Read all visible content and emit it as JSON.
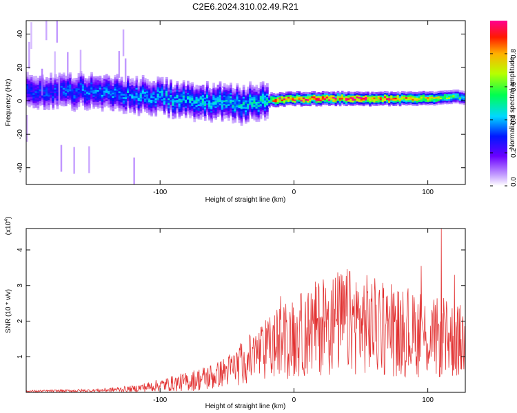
{
  "figure_title": "C2E6.2024.310.02.49.R21",
  "colors": {
    "snr_line": "#e23232",
    "background": "#ffffff",
    "axis": "#000000"
  },
  "chart_data": [
    {
      "type": "heatmap",
      "name": "spectrogram",
      "xlabel": "Height of straight line (km)",
      "ylabel": "Frequency (Hz)",
      "xlim": [
        -200,
        128
      ],
      "ylim": [
        -50,
        48
      ],
      "xticks": [
        -100,
        0,
        100
      ],
      "yticks": [
        -40,
        -20,
        0,
        20,
        40
      ],
      "colorbar": {
        "label": "Normalized spectral amplitude",
        "range": [
          0.0,
          1.0
        ],
        "ticks": [
          "0.0",
          "0.2",
          "0.4",
          "0.6",
          "0.8"
        ],
        "tick_values": [
          0.0,
          0.2,
          0.4,
          0.6,
          0.8
        ],
        "colormap": "rainbow"
      },
      "grid": false,
      "ridge_center_hz": [
        [
          -200,
          6
        ],
        [
          -180,
          4
        ],
        [
          -160,
          6
        ],
        [
          -140,
          5
        ],
        [
          -120,
          3
        ],
        [
          -100,
          2
        ],
        [
          -80,
          0
        ],
        [
          -60,
          -1
        ],
        [
          -40,
          -2
        ],
        [
          -20,
          0
        ],
        [
          0,
          1
        ],
        [
          20,
          1
        ],
        [
          40,
          1
        ],
        [
          60,
          1
        ],
        [
          80,
          1
        ],
        [
          100,
          1
        ],
        [
          128,
          2
        ]
      ],
      "peak_amplitude": [
        [
          -200,
          0.3
        ],
        [
          -100,
          0.4
        ],
        [
          -20,
          0.45
        ],
        [
          -15,
          0.9
        ],
        [
          0,
          0.95
        ],
        [
          60,
          0.92
        ],
        [
          100,
          0.75
        ],
        [
          128,
          0.5
        ]
      ]
    },
    {
      "type": "line",
      "name": "snr",
      "xlabel": "Height of straight line (km)",
      "ylabel": "SNR (10 * v/v)",
      "scale_label": "(x10",
      "scale_exponent": "4",
      "xlim": [
        -200,
        128
      ],
      "ylim": [
        0,
        4.6
      ],
      "xticks": [
        -100,
        0,
        100
      ],
      "yticks": [
        1,
        2,
        3,
        4
      ],
      "grid": false,
      "envelope": {
        "x": [
          -200,
          -150,
          -120,
          -100,
          -80,
          -60,
          -50,
          -40,
          -30,
          -20,
          -10,
          0,
          10,
          20,
          30,
          40,
          50,
          60,
          70,
          80,
          90,
          100,
          110,
          120,
          128
        ],
        "y": [
          0.03,
          0.05,
          0.1,
          0.2,
          0.3,
          0.45,
          0.6,
          0.8,
          1.0,
          1.2,
          1.4,
          1.5,
          1.7,
          1.85,
          1.95,
          2.0,
          1.95,
          1.85,
          1.75,
          1.7,
          1.6,
          1.55,
          1.5,
          1.45,
          1.4
        ]
      },
      "spike_peaks": [
        {
          "x": -10,
          "y": 2.7
        },
        {
          "x": 60,
          "y": 2.55
        },
        {
          "x": 95,
          "y": 3.55
        },
        {
          "x": 110,
          "y": 4.6
        },
        {
          "x": 120,
          "y": 3.3
        }
      ]
    }
  ]
}
